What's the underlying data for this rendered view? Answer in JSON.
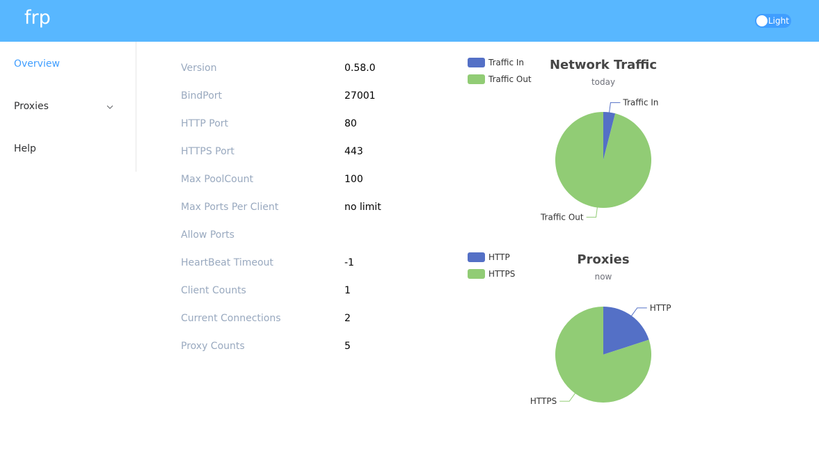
{
  "header": {
    "title": "frp",
    "theme_toggle": "Light"
  },
  "nav": {
    "items": [
      "Overview",
      "Proxies",
      "Help"
    ]
  },
  "info": {
    "rows": [
      {
        "label": "Version",
        "value": "0.58.0"
      },
      {
        "label": "BindPort",
        "value": "27001"
      },
      {
        "label": "HTTP Port",
        "value": "80"
      },
      {
        "label": "HTTPS Port",
        "value": "443"
      },
      {
        "label": "Max PoolCount",
        "value": "100"
      },
      {
        "label": "Max Ports Per Client",
        "value": "no limit"
      },
      {
        "label": "Allow Ports"
      },
      {
        "label": "HeartBeat Timeout",
        "value": "-1"
      },
      {
        "label": "Client Counts",
        "value": "1"
      },
      {
        "label": "Current Connections",
        "value": "2"
      },
      {
        "label": "Proxy Counts",
        "value": "5"
      }
    ]
  },
  "chart_data": [
    {
      "type": "pie",
      "title": "Network Traffic",
      "subtitle": "today",
      "categories": [
        "Traffic In",
        "Traffic Out"
      ],
      "values": [
        4,
        96
      ],
      "colors": [
        "#5470c6",
        "#91cc75"
      ]
    },
    {
      "type": "pie",
      "title": "Proxies",
      "subtitle": "now",
      "categories": [
        "HTTP",
        "HTTPS"
      ],
      "values": [
        1,
        4
      ],
      "colors": [
        "#5470c6",
        "#91cc75"
      ]
    }
  ]
}
